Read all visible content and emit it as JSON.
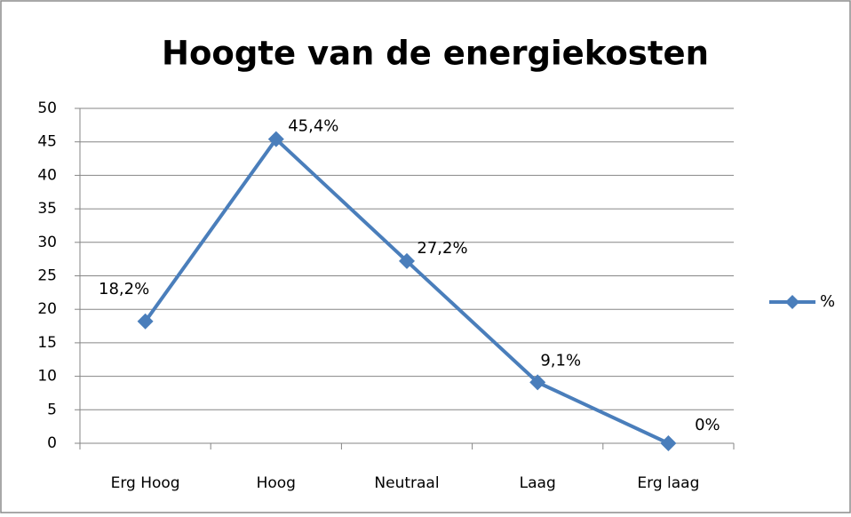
{
  "chart_data": {
    "type": "line",
    "title": "Hoogte van de energiekosten",
    "categories": [
      "Erg Hoog",
      "Hoog",
      "Neutraal",
      "Laag",
      "Erg laag"
    ],
    "series": [
      {
        "name": "%",
        "color": "#4a7ebb",
        "values": [
          18.2,
          45.4,
          27.2,
          9.1,
          0
        ],
        "value_labels": [
          "18,2%",
          "45,4%",
          "27,2%",
          "9,1%",
          "0%"
        ]
      }
    ],
    "ylim": [
      0,
      50
    ],
    "yticks": [
      0,
      5,
      10,
      15,
      20,
      25,
      30,
      35,
      40,
      45,
      50
    ],
    "grid": true,
    "legend": "right"
  }
}
